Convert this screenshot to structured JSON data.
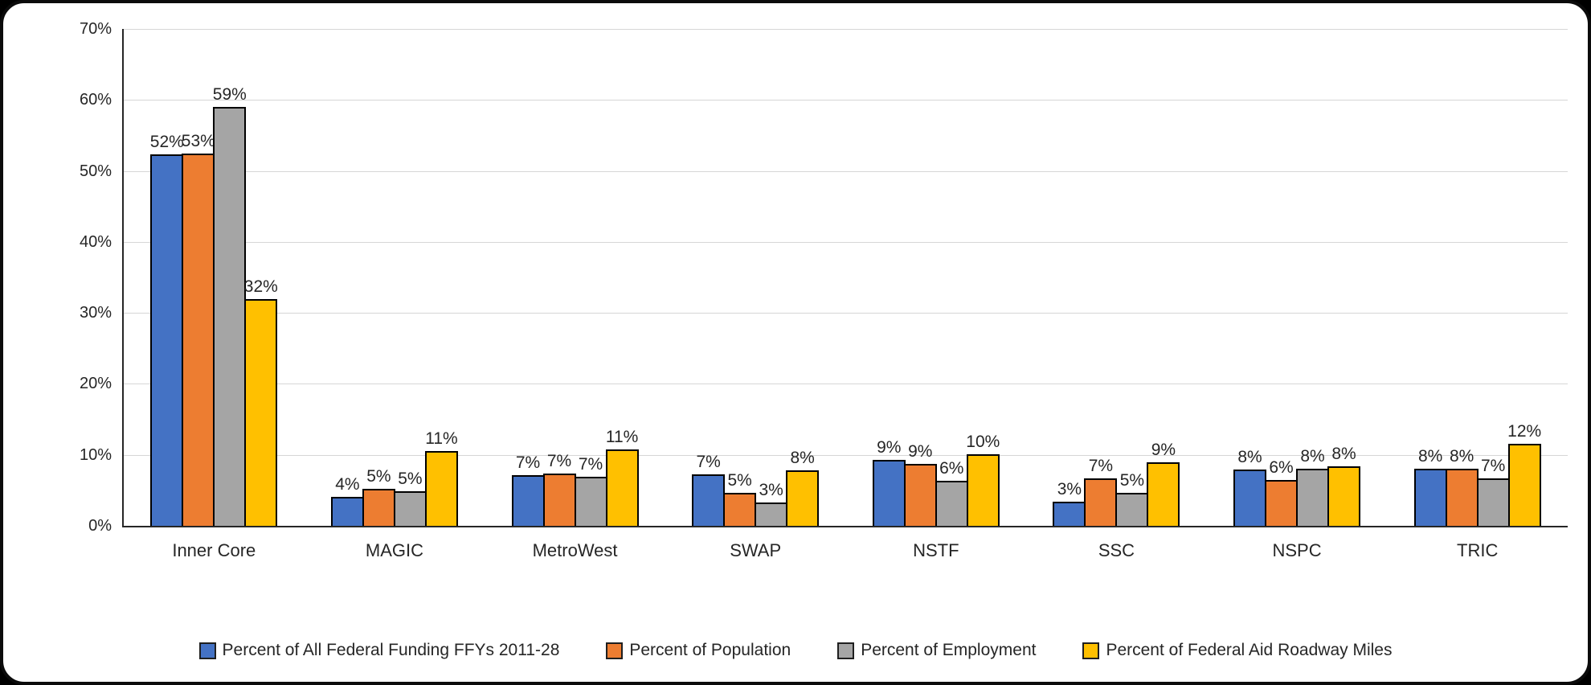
{
  "chart_data": {
    "type": "bar",
    "title": "",
    "xlabel": "",
    "ylabel": "",
    "categories": [
      "Inner Core",
      "MAGIC",
      "MetroWest",
      "SWAP",
      "NSTF",
      "SSC",
      "NSPC",
      "TRIC"
    ],
    "series": [
      {
        "name": "Percent of All Federal Funding FFYs 2011-28",
        "color": "#4472C4",
        "values": [
          52,
          4,
          7,
          7,
          9,
          3,
          8,
          8
        ],
        "labels": [
          "52%",
          "4%",
          "7%",
          "7%",
          "9%",
          "3%",
          "8%",
          "8%"
        ],
        "display_values": [
          52.3,
          4.1,
          7.1,
          7.3,
          9.3,
          3.4,
          7.9,
          8.1
        ]
      },
      {
        "name": "Percent of Population",
        "color": "#ED7D31",
        "values": [
          53,
          5,
          7,
          5,
          9,
          7,
          6,
          8
        ],
        "labels": [
          "53%",
          "5%",
          "7%",
          "5%",
          "9%",
          "7%",
          "6%",
          "8%"
        ],
        "display_values": [
          52.5,
          5.2,
          7.4,
          4.6,
          8.7,
          6.7,
          6.5,
          8.0
        ]
      },
      {
        "name": "Percent of Employment",
        "color": "#A5A5A5",
        "values": [
          59,
          5,
          7,
          3,
          6,
          5,
          8,
          7
        ],
        "labels": [
          "59%",
          "5%",
          "7%",
          "3%",
          "6%",
          "5%",
          "8%",
          "7%"
        ],
        "display_values": [
          59.0,
          4.9,
          6.9,
          3.3,
          6.3,
          4.7,
          8.1,
          6.7
        ]
      },
      {
        "name": "Percent of Federal Aid Roadway Miles",
        "color": "#FFC000",
        "values": [
          32,
          11,
          11,
          8,
          10,
          9,
          8,
          12
        ],
        "labels": [
          "32%",
          "11%",
          "11%",
          "8%",
          "10%",
          "9%",
          "8%",
          "12%"
        ],
        "display_values": [
          31.9,
          10.5,
          10.8,
          7.8,
          10.1,
          8.9,
          8.4,
          11.6
        ]
      }
    ],
    "y_axis": {
      "min": 0,
      "max": 70,
      "step": 10,
      "tick_labels": [
        "0%",
        "10%",
        "20%",
        "30%",
        "40%",
        "50%",
        "60%",
        "70%"
      ]
    },
    "grid": true,
    "legend_position": "bottom",
    "bar_border_color": "#000000",
    "gridline_color": "#D6D6D6",
    "axis_color": "#262626",
    "text_color": "#262626"
  }
}
